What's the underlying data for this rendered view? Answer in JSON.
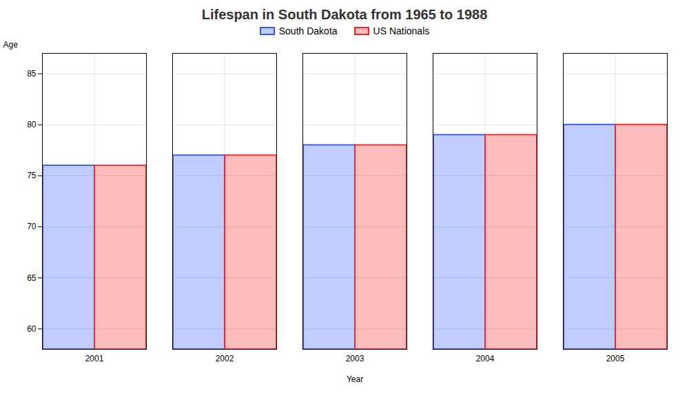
{
  "chart_data": {
    "type": "bar",
    "title": "Lifespan in South Dakota from 1965 to 1988",
    "x_label": "Year",
    "y_label": "Age",
    "categories": [
      "2001",
      "2002",
      "2003",
      "2004",
      "2005"
    ],
    "series": [
      {
        "name": "South Dakota",
        "color": "#3355ff",
        "values": [
          76,
          77,
          78,
          79,
          80
        ]
      },
      {
        "name": "US Nationals",
        "color": "#ff2222",
        "values": [
          76,
          77,
          78,
          79,
          80
        ]
      }
    ],
    "ylim": [
      58,
      87
    ],
    "yticks": [
      60,
      65,
      70,
      75,
      80,
      85
    ],
    "grid": true,
    "legend": "top"
  }
}
